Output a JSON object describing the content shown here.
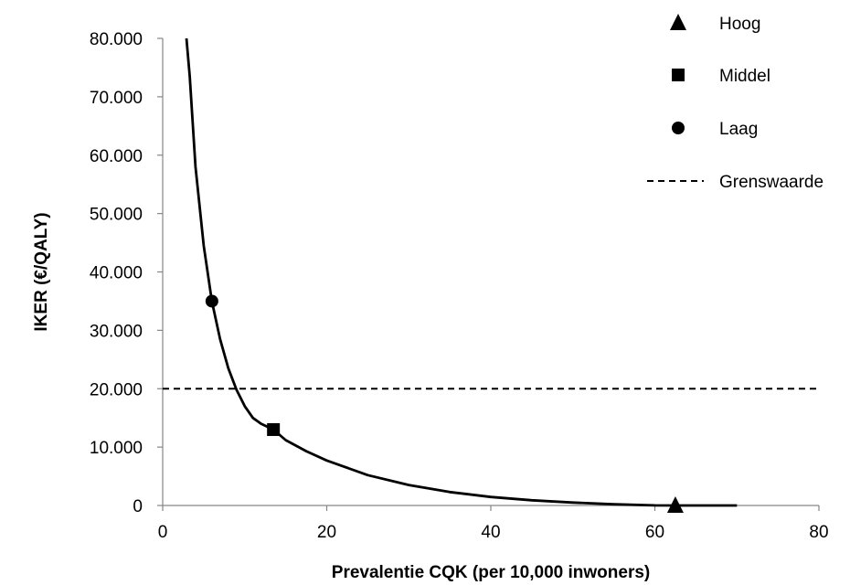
{
  "chart_data": {
    "type": "line",
    "xlabel": "Prevalentie CQK (per 10,000 inwoners)",
    "ylabel": "IKER (€/QALY)",
    "xlim": [
      0,
      80
    ],
    "ylim": [
      0,
      80000
    ],
    "x_ticks": [
      0,
      20,
      40,
      60,
      80
    ],
    "x_tick_labels": [
      "0",
      "20",
      "40",
      "60",
      "80"
    ],
    "y_ticks": [
      0,
      10000,
      20000,
      30000,
      40000,
      50000,
      60000,
      70000,
      80000
    ],
    "y_tick_labels": [
      "0",
      "10.000",
      "20.000",
      "30.000",
      "40.000",
      "50.000",
      "60.000",
      "70.000",
      "80.000"
    ],
    "grid": false,
    "legend_position": "top-right",
    "curve": {
      "x": [
        2.9,
        3.3,
        4,
        5,
        6,
        7,
        8,
        9,
        10,
        11,
        12,
        13.5,
        15,
        17.5,
        20,
        25,
        30,
        35,
        40,
        45,
        50,
        55,
        60,
        62.5,
        66,
        70
      ],
      "y": [
        80000,
        73500,
        58000,
        44500,
        35000,
        28500,
        23500,
        19800,
        17000,
        15000,
        14000,
        13000,
        11200,
        9300,
        7700,
        5200,
        3500,
        2300,
        1450,
        900,
        500,
        200,
        20,
        0,
        0,
        0
      ],
      "color": "#000000"
    },
    "series": [
      {
        "name": "Hoog",
        "marker": "triangle",
        "x": [
          62.5
        ],
        "y": [
          0
        ]
      },
      {
        "name": "Middel",
        "marker": "square",
        "x": [
          13.5
        ],
        "y": [
          13000
        ]
      },
      {
        "name": "Laag",
        "marker": "circle",
        "x": [
          6
        ],
        "y": [
          35000
        ]
      },
      {
        "name": "Grenswaarde",
        "marker": "dashed-line",
        "y_value": 20000,
        "x_range": [
          0,
          80
        ]
      }
    ]
  }
}
